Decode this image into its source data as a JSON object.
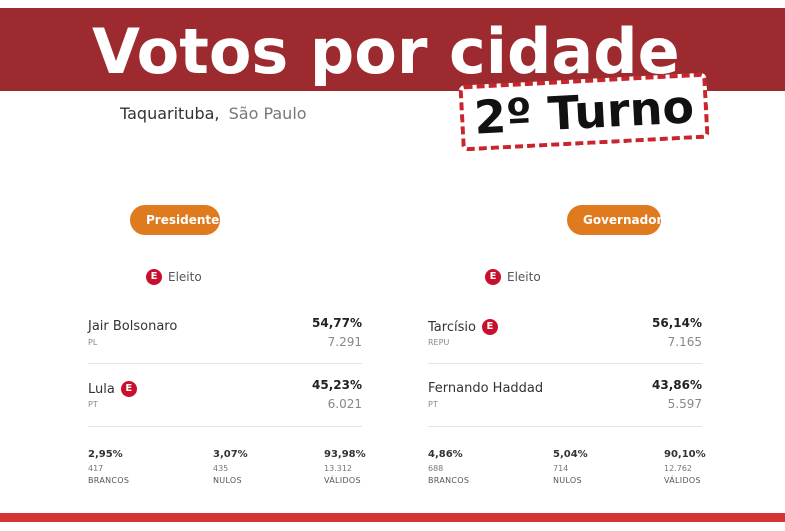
{
  "header": {
    "title": "Votos por cidade",
    "stamp": "2º Turno"
  },
  "location": {
    "city": "Taquarituba,",
    "state": "São Paulo"
  },
  "legend_label": "Eleito",
  "legend_badge": "E",
  "panels": [
    {
      "tab": "Presidente",
      "candidates": [
        {
          "name": "Jair Bolsonaro",
          "party": "PL",
          "pct": "54,77%",
          "votes": "7.291",
          "elected": false
        },
        {
          "name": "Lula",
          "party": "PT",
          "pct": "45,23%",
          "votes": "6.021",
          "elected": true
        }
      ],
      "stats": [
        {
          "pct": "2,95%",
          "num": "417",
          "label": "BRANCOS"
        },
        {
          "pct": "3,07%",
          "num": "435",
          "label": "NULOS"
        },
        {
          "pct": "93,98%",
          "num": "13.312",
          "label": "VÁLIDOS"
        }
      ]
    },
    {
      "tab": "Governador",
      "candidates": [
        {
          "name": "Tarcísio",
          "party": "REPU",
          "pct": "56,14%",
          "votes": "7.165",
          "elected": true
        },
        {
          "name": "Fernando Haddad",
          "party": "PT",
          "pct": "43,86%",
          "votes": "5.597",
          "elected": false
        }
      ],
      "stats": [
        {
          "pct": "4,86%",
          "num": "688",
          "label": "BRANCOS"
        },
        {
          "pct": "5,04%",
          "num": "714",
          "label": "NULOS"
        },
        {
          "pct": "90,10%",
          "num": "12.762",
          "label": "VÁLIDOS"
        }
      ]
    }
  ],
  "colors": {
    "header": "#9c2a2e",
    "accent": "#e07a1f",
    "elected": "#c8102e",
    "footer": "#d43434"
  }
}
